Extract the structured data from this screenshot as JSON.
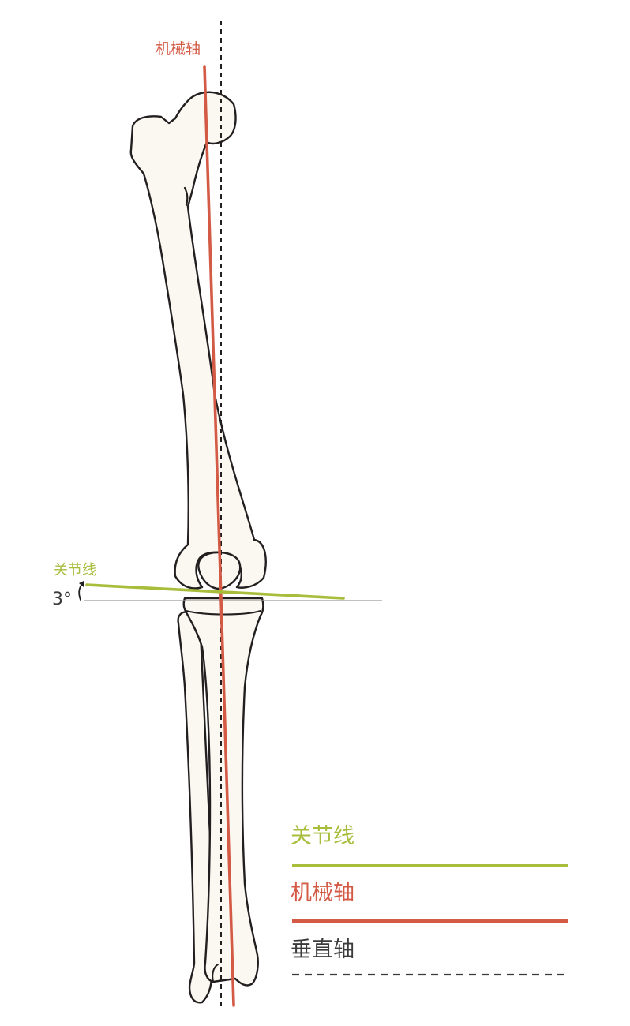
{
  "diagram": {
    "top_label": "机械轴",
    "joint_label": "关节线",
    "angle_label": "3°"
  },
  "legend": {
    "items": [
      {
        "label": "关节线",
        "color": "#a9bd3c",
        "style": "solid"
      },
      {
        "label": "机械轴",
        "color": "#d35a45",
        "style": "solid"
      },
      {
        "label": "垂直轴",
        "color": "#3b3b3b",
        "style": "dashed"
      }
    ]
  },
  "colors": {
    "joint_line": "#a9bd3c",
    "mechanical_axis": "#d35a45",
    "vertical_axis": "#231f20",
    "reference_line": "#9a9a9a",
    "bone_fill": "#fbf8f1",
    "bone_outline": "#231f20"
  }
}
